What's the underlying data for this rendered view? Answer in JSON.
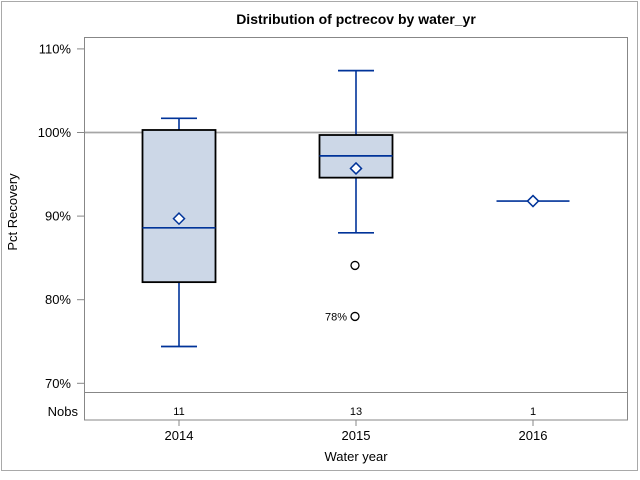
{
  "chart_data": {
    "type": "boxplot",
    "title": "Distribution of pctrecov by water_yr",
    "xlabel": "Water year",
    "ylabel": "Pct Recovery",
    "nobs_header": "Nobs",
    "y_ticks": [
      {
        "value": 110,
        "label": "110%"
      },
      {
        "value": 100,
        "label": "100%"
      },
      {
        "value": 90,
        "label": "90%"
      },
      {
        "value": 80,
        "label": "80%"
      },
      {
        "value": 70,
        "label": "70%"
      }
    ],
    "ylim": [
      69,
      111.6
    ],
    "grid": false,
    "legend": null,
    "reference_line_value": 100,
    "categories": [
      "2014",
      "2015",
      "2016"
    ],
    "groups": [
      {
        "category": "2014",
        "nobs": "11",
        "whisker_low": 74.4,
        "q1": 82.1,
        "median": 88.6,
        "mean": 89.7,
        "q3": 100.3,
        "whisker_high": 101.7,
        "outliers": []
      },
      {
        "category": "2015",
        "nobs": "13",
        "whisker_low": 88.0,
        "q1": 94.6,
        "median": 97.2,
        "mean": 95.7,
        "q3": 99.7,
        "whisker_high": 107.4,
        "outliers": [
          {
            "value": 84.1,
            "label": ""
          },
          {
            "value": 78.0,
            "label": "78%"
          }
        ]
      },
      {
        "category": "2016",
        "nobs": "1",
        "whisker_low": 91.8,
        "q1": 91.8,
        "median": 91.8,
        "mean": 91.8,
        "q3": 91.8,
        "whisker_high": 91.8,
        "outliers": []
      }
    ],
    "colors": {
      "box_fill": "#ccd7e7",
      "box_border": "#000000",
      "line_blue": "#003399",
      "reference_line": "#a6a6a6",
      "frame": "#878787",
      "outer_border": "#a9a9a9",
      "text": "#000000"
    }
  }
}
